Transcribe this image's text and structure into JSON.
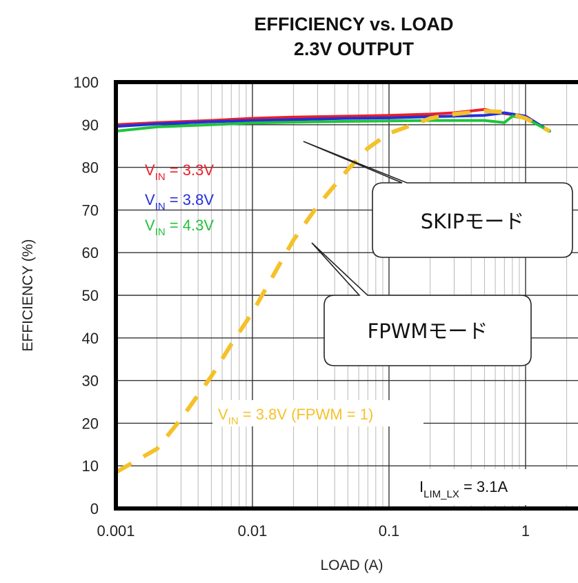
{
  "chart_data": {
    "type": "line",
    "title_line1": "EFFICIENCY vs. LOAD",
    "title_line2": "2.3V OUTPUT",
    "tag": "toc02",
    "xlabel": "LOAD (A)",
    "ylabel": "EFFICIENCY (%)",
    "xscale": "log",
    "xlim": [
      0.001,
      2
    ],
    "ylim": [
      0,
      100
    ],
    "xticks": [
      "0.001",
      "0.01",
      "0.1",
      "1"
    ],
    "xtick_values": [
      0.001,
      0.01,
      0.1,
      1
    ],
    "yticks": [
      0,
      10,
      20,
      30,
      40,
      50,
      60,
      70,
      80,
      90,
      100
    ],
    "grid": true,
    "series": [
      {
        "name": "V_IN = 3.3V",
        "label_main": "V",
        "label_sub": "IN",
        "label_rest": " = 3.3V",
        "color": "#e8202a",
        "style": "solid",
        "x": [
          0.001,
          0.002,
          0.005,
          0.01,
          0.02,
          0.05,
          0.1,
          0.2,
          0.3,
          0.5,
          0.7,
          1.0,
          1.5
        ],
        "y": [
          90.0,
          90.5,
          91.0,
          91.5,
          91.8,
          92.0,
          92.2,
          92.5,
          92.8,
          93.6,
          92.6,
          92.0,
          88.5
        ]
      },
      {
        "name": "V_IN = 3.8V",
        "label_main": "V",
        "label_sub": "IN",
        "label_rest": " = 3.8V",
        "color": "#2430d8",
        "style": "solid",
        "x": [
          0.001,
          0.002,
          0.005,
          0.01,
          0.02,
          0.05,
          0.1,
          0.2,
          0.3,
          0.5,
          0.7,
          1.0,
          1.5
        ],
        "y": [
          89.6,
          90.2,
          90.7,
          91.0,
          91.2,
          91.5,
          91.6,
          91.9,
          92.0,
          92.2,
          92.8,
          92.0,
          88.5
        ]
      },
      {
        "name": "V_IN = 4.3V",
        "label_main": "V",
        "label_sub": "IN",
        "label_rest": " = 4.3V",
        "color": "#1fc43a",
        "style": "solid",
        "x": [
          0.001,
          0.002,
          0.005,
          0.01,
          0.02,
          0.05,
          0.1,
          0.2,
          0.3,
          0.5,
          0.7,
          0.8,
          1.0,
          1.5
        ],
        "y": [
          88.5,
          89.5,
          90.0,
          90.4,
          90.6,
          90.8,
          90.9,
          91.0,
          91.0,
          91.0,
          90.5,
          92.0,
          91.5,
          88.5
        ]
      },
      {
        "name": "V_IN = 3.8V (FPWM = 1)",
        "label_main": "V",
        "label_sub": "IN",
        "label_rest": " = 3.8V (FPWM = 1)",
        "color": "#f5c12a",
        "style": "dashed",
        "x": [
          0.001,
          0.002,
          0.003,
          0.005,
          0.007,
          0.01,
          0.015,
          0.02,
          0.03,
          0.05,
          0.07,
          0.1,
          0.15,
          0.2,
          0.3,
          0.5,
          0.7,
          1.0,
          1.5
        ],
        "y": [
          8.5,
          14.0,
          21.0,
          31.0,
          38.5,
          46.0,
          56.0,
          63.0,
          71.0,
          79.5,
          84.5,
          88.0,
          90.0,
          91.5,
          92.5,
          93.2,
          93.0,
          91.5,
          88.5
        ]
      }
    ],
    "annotations": {
      "current_limit": {
        "main": "I",
        "sub": "LIM_LX",
        "rest": " = 3.1A"
      },
      "callout_skip": "SKIPモード",
      "callout_fpwm": "FPWMモード"
    }
  }
}
